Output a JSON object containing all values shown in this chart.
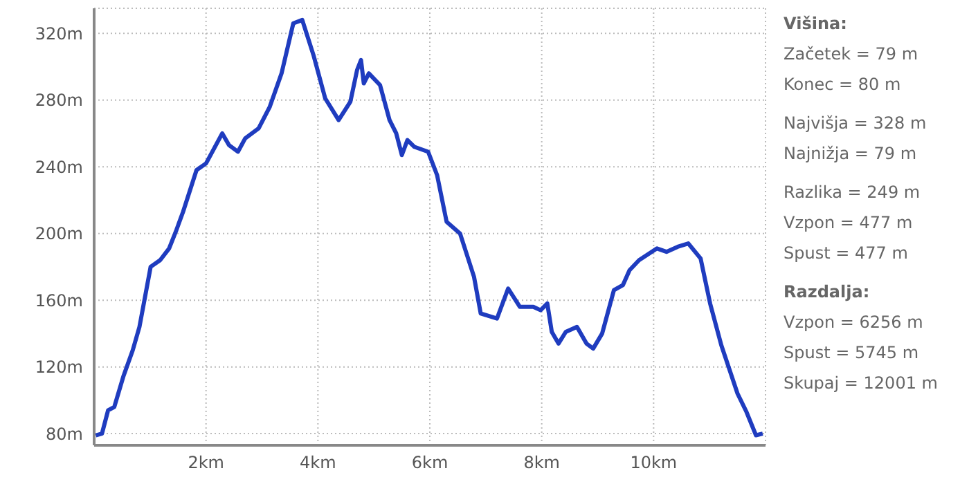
{
  "chart_data": {
    "type": "line",
    "x": [
      0.03,
      0.14,
      0.25,
      0.36,
      0.52,
      0.69,
      0.81,
      1.01,
      1.18,
      1.34,
      1.47,
      1.59,
      1.83,
      2.0,
      2.29,
      2.41,
      2.57,
      2.7,
      2.94,
      3.14,
      3.35,
      3.56,
      3.72,
      3.92,
      4.13,
      4.37,
      4.58,
      4.7,
      4.77,
      4.82,
      4.91,
      5.11,
      5.28,
      5.4,
      5.5,
      5.6,
      5.72,
      5.97,
      6.13,
      6.3,
      6.54,
      6.79,
      6.91,
      7.2,
      7.4,
      7.61,
      7.85,
      7.98,
      8.1,
      8.18,
      8.3,
      8.43,
      8.63,
      8.8,
      8.92,
      9.08,
      9.29,
      9.45,
      9.57,
      9.74,
      10.06,
      10.23,
      10.43,
      10.62,
      10.84,
      11.01,
      11.21,
      11.5,
      11.66,
      11.83,
      11.95
    ],
    "series": [
      {
        "color": "#1f3cbf",
        "values": [
          79,
          80,
          94,
          96,
          114,
          130,
          144,
          180,
          184,
          191,
          202,
          213,
          238,
          242,
          260,
          253,
          249,
          257,
          263,
          276,
          296,
          326,
          328,
          307,
          281,
          268,
          279,
          298,
          304,
          290,
          296,
          289,
          268,
          260,
          247,
          256,
          252,
          249,
          235,
          207,
          200,
          174,
          152,
          149,
          167,
          156,
          156,
          154,
          158,
          141,
          134,
          141,
          144,
          134,
          131,
          140,
          166,
          169,
          178,
          184,
          191,
          189,
          192,
          194,
          185,
          158,
          133,
          104,
          93,
          79,
          80
        ]
      }
    ],
    "xlim": [
      0,
      12
    ],
    "ylim": [
      73,
      335
    ],
    "xticks": [
      {
        "value": 2,
        "label": "2km"
      },
      {
        "value": 4,
        "label": "4km"
      },
      {
        "value": 6,
        "label": "6km"
      },
      {
        "value": 8,
        "label": "8km"
      },
      {
        "value": 10,
        "label": "10km"
      }
    ],
    "yticks": [
      {
        "value": 80,
        "label": "80m"
      },
      {
        "value": 120,
        "label": "120m"
      },
      {
        "value": 160,
        "label": "160m"
      },
      {
        "value": 200,
        "label": "200m"
      },
      {
        "value": 240,
        "label": "240m"
      },
      {
        "value": 280,
        "label": "280m"
      },
      {
        "value": 320,
        "label": "320m"
      }
    ],
    "grid": true,
    "marker": "none",
    "line_style": "solid",
    "legend": false,
    "annotations": [
      "Višina:",
      "Začetek = 79 m",
      "Konec = 80 m",
      "Najvišja = 328 m",
      "Najnižja = 79 m",
      "Razlika = 249 m",
      "Vzpon = 477 m",
      "Spust = 477 m",
      "Razdalja:",
      "Vzpon = 6256 m",
      "Spust = 5745 m",
      "Skupaj = 12001 m"
    ]
  }
}
